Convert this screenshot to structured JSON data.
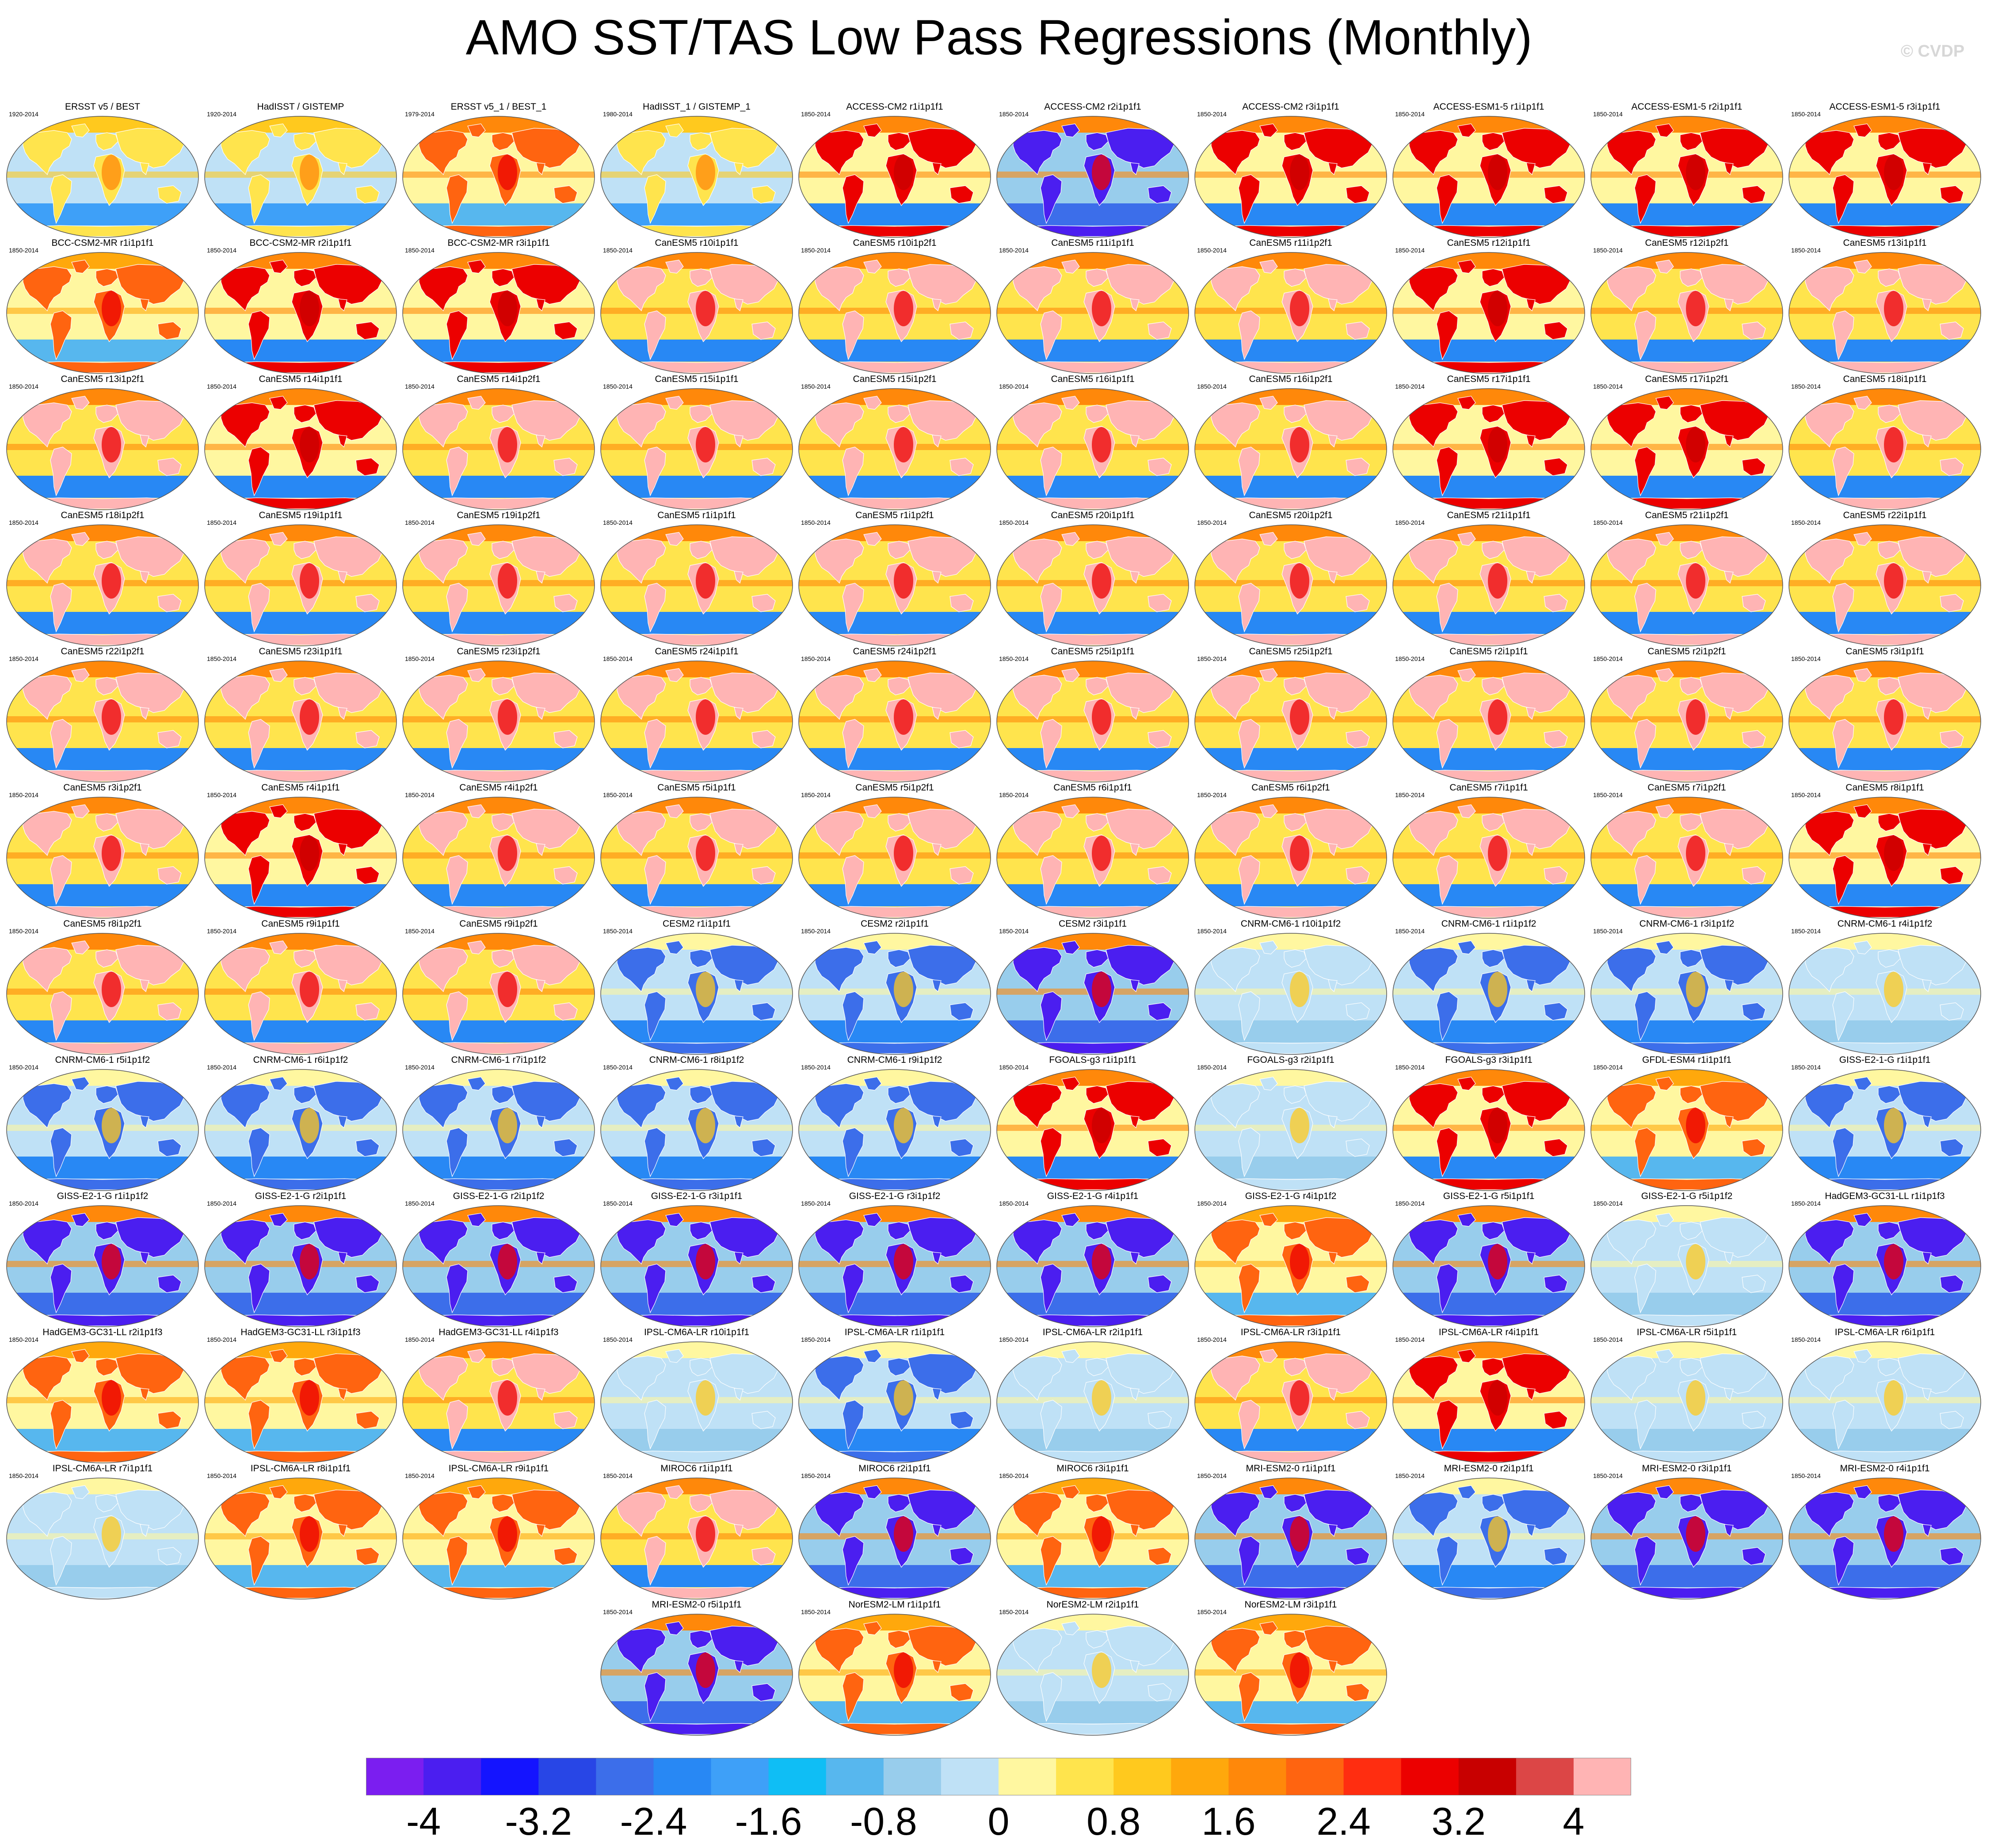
{
  "title": "AMO SST/TAS Low Pass Regressions (Monthly)",
  "watermark": "© CVDP",
  "panels": [
    {
      "title": "ERSST v5 / BEST",
      "years": "1920-2014",
      "pattern": "obs"
    },
    {
      "title": "HadISST / GISTEMP",
      "years": "1920-2014",
      "pattern": "obs"
    },
    {
      "title": "ERSST v5_1 / BEST_1",
      "years": "1979-2014",
      "pattern": "obs-warm"
    },
    {
      "title": "HadISST_1 / GISTEMP_1",
      "years": "1980-2014",
      "pattern": "obs"
    },
    {
      "title": "ACCESS-CM2 r1i1p1f1",
      "years": "1850-2014",
      "pattern": "hot"
    },
    {
      "title": "ACCESS-CM2 r2i1p1f1",
      "years": "1850-2014",
      "pattern": "cold"
    },
    {
      "title": "ACCESS-CM2 r3i1p1f1",
      "years": "1850-2014",
      "pattern": "hot"
    },
    {
      "title": "ACCESS-ESM1-5 r1i1p1f1",
      "years": "1850-2014",
      "pattern": "hot"
    },
    {
      "title": "ACCESS-ESM1-5 r2i1p1f1",
      "years": "1850-2014",
      "pattern": "hot"
    },
    {
      "title": "ACCESS-ESM1-5 r3i1p1f1",
      "years": "1850-2014",
      "pattern": "hot"
    },
    {
      "title": "BCC-CSM2-MR r1i1p1f1",
      "years": "1850-2014",
      "pattern": "warm"
    },
    {
      "title": "BCC-CSM2-MR r2i1p1f1",
      "years": "1850-2014",
      "pattern": "hot"
    },
    {
      "title": "BCC-CSM2-MR r3i1p1f1",
      "years": "1850-2014",
      "pattern": "hot"
    },
    {
      "title": "CanESM5 r10i1p1f1",
      "years": "1850-2014",
      "pattern": "pink"
    },
    {
      "title": "CanESM5 r10i1p2f1",
      "years": "1850-2014",
      "pattern": "pink"
    },
    {
      "title": "CanESM5 r11i1p1f1",
      "years": "1850-2014",
      "pattern": "pink"
    },
    {
      "title": "CanESM5 r11i1p2f1",
      "years": "1850-2014",
      "pattern": "pink"
    },
    {
      "title": "CanESM5 r12i1p1f1",
      "years": "1850-2014",
      "pattern": "hot"
    },
    {
      "title": "CanESM5 r12i1p2f1",
      "years": "1850-2014",
      "pattern": "pink"
    },
    {
      "title": "CanESM5 r13i1p1f1",
      "years": "1850-2014",
      "pattern": "pink"
    },
    {
      "title": "CanESM5 r13i1p2f1",
      "years": "1850-2014",
      "pattern": "pink"
    },
    {
      "title": "CanESM5 r14i1p1f1",
      "years": "1850-2014",
      "pattern": "hot"
    },
    {
      "title": "CanESM5 r14i1p2f1",
      "years": "1850-2014",
      "pattern": "pink"
    },
    {
      "title": "CanESM5 r15i1p1f1",
      "years": "1850-2014",
      "pattern": "pink"
    },
    {
      "title": "CanESM5 r15i1p2f1",
      "years": "1850-2014",
      "pattern": "pink"
    },
    {
      "title": "CanESM5 r16i1p1f1",
      "years": "1850-2014",
      "pattern": "pink"
    },
    {
      "title": "CanESM5 r16i1p2f1",
      "years": "1850-2014",
      "pattern": "pink"
    },
    {
      "title": "CanESM5 r17i1p1f1",
      "years": "1850-2014",
      "pattern": "hot"
    },
    {
      "title": "CanESM5 r17i1p2f1",
      "years": "1850-2014",
      "pattern": "hot"
    },
    {
      "title": "CanESM5 r18i1p1f1",
      "years": "1850-2014",
      "pattern": "pink"
    },
    {
      "title": "CanESM5 r18i1p2f1",
      "years": "1850-2014",
      "pattern": "pink"
    },
    {
      "title": "CanESM5 r19i1p1f1",
      "years": "1850-2014",
      "pattern": "pink"
    },
    {
      "title": "CanESM5 r19i1p2f1",
      "years": "1850-2014",
      "pattern": "pink"
    },
    {
      "title": "CanESM5 r1i1p1f1",
      "years": "1850-2014",
      "pattern": "pink"
    },
    {
      "title": "CanESM5 r1i1p2f1",
      "years": "1850-2014",
      "pattern": "pink"
    },
    {
      "title": "CanESM5 r20i1p1f1",
      "years": "1850-2014",
      "pattern": "pink"
    },
    {
      "title": "CanESM5 r20i1p2f1",
      "years": "1850-2014",
      "pattern": "pink"
    },
    {
      "title": "CanESM5 r21i1p1f1",
      "years": "1850-2014",
      "pattern": "pink"
    },
    {
      "title": "CanESM5 r21i1p2f1",
      "years": "1850-2014",
      "pattern": "pink"
    },
    {
      "title": "CanESM5 r22i1p1f1",
      "years": "1850-2014",
      "pattern": "pink"
    },
    {
      "title": "CanESM5 r22i1p2f1",
      "years": "1850-2014",
      "pattern": "pink"
    },
    {
      "title": "CanESM5 r23i1p1f1",
      "years": "1850-2014",
      "pattern": "pink"
    },
    {
      "title": "CanESM5 r23i1p2f1",
      "years": "1850-2014",
      "pattern": "pink"
    },
    {
      "title": "CanESM5 r24i1p1f1",
      "years": "1850-2014",
      "pattern": "pink"
    },
    {
      "title": "CanESM5 r24i1p2f1",
      "years": "1850-2014",
      "pattern": "pink"
    },
    {
      "title": "CanESM5 r25i1p1f1",
      "years": "1850-2014",
      "pattern": "pink"
    },
    {
      "title": "CanESM5 r25i1p2f1",
      "years": "1850-2014",
      "pattern": "pink"
    },
    {
      "title": "CanESM5 r2i1p1f1",
      "years": "1850-2014",
      "pattern": "pink"
    },
    {
      "title": "CanESM5 r2i1p2f1",
      "years": "1850-2014",
      "pattern": "pink"
    },
    {
      "title": "CanESM5 r3i1p1f1",
      "years": "1850-2014",
      "pattern": "pink"
    },
    {
      "title": "CanESM5 r3i1p2f1",
      "years": "1850-2014",
      "pattern": "pink"
    },
    {
      "title": "CanESM5 r4i1p1f1",
      "years": "1850-2014",
      "pattern": "hot"
    },
    {
      "title": "CanESM5 r4i1p2f1",
      "years": "1850-2014",
      "pattern": "pink"
    },
    {
      "title": "CanESM5 r5i1p1f1",
      "years": "1850-2014",
      "pattern": "pink"
    },
    {
      "title": "CanESM5 r5i1p2f1",
      "years": "1850-2014",
      "pattern": "pink"
    },
    {
      "title": "CanESM5 r6i1p1f1",
      "years": "1850-2014",
      "pattern": "pink"
    },
    {
      "title": "CanESM5 r6i1p2f1",
      "years": "1850-2014",
      "pattern": "pink"
    },
    {
      "title": "CanESM5 r7i1p1f1",
      "years": "1850-2014",
      "pattern": "pink"
    },
    {
      "title": "CanESM5 r7i1p2f1",
      "years": "1850-2014",
      "pattern": "pink"
    },
    {
      "title": "CanESM5 r8i1p1f1",
      "years": "1850-2014",
      "pattern": "hot"
    },
    {
      "title": "CanESM5 r8i1p2f1",
      "years": "1850-2014",
      "pattern": "pink"
    },
    {
      "title": "CanESM5 r9i1p1f1",
      "years": "1850-2014",
      "pattern": "pink"
    },
    {
      "title": "CanESM5 r9i1p2f1",
      "years": "1850-2014",
      "pattern": "pink"
    },
    {
      "title": "CESM2 r1i1p1f1",
      "years": "1850-2014",
      "pattern": "blue"
    },
    {
      "title": "CESM2 r2i1p1f1",
      "years": "1850-2014",
      "pattern": "blue"
    },
    {
      "title": "CESM2 r3i1p1f1",
      "years": "1850-2014",
      "pattern": "cold"
    },
    {
      "title": "CNRM-CM6-1 r10i1p1f2",
      "years": "1850-2014",
      "pattern": "pale"
    },
    {
      "title": "CNRM-CM6-1 r1i1p1f2",
      "years": "1850-2014",
      "pattern": "blue"
    },
    {
      "title": "CNRM-CM6-1 r3i1p1f2",
      "years": "1850-2014",
      "pattern": "blue"
    },
    {
      "title": "CNRM-CM6-1 r4i1p1f2",
      "years": "1850-2014",
      "pattern": "pale"
    },
    {
      "title": "CNRM-CM6-1 r5i1p1f2",
      "years": "1850-2014",
      "pattern": "blue"
    },
    {
      "title": "CNRM-CM6-1 r6i1p1f2",
      "years": "1850-2014",
      "pattern": "blue"
    },
    {
      "title": "CNRM-CM6-1 r7i1p1f2",
      "years": "1850-2014",
      "pattern": "blue"
    },
    {
      "title": "CNRM-CM6-1 r8i1p1f2",
      "years": "1850-2014",
      "pattern": "blue"
    },
    {
      "title": "CNRM-CM6-1 r9i1p1f2",
      "years": "1850-2014",
      "pattern": "blue"
    },
    {
      "title": "FGOALS-g3 r1i1p1f1",
      "years": "1850-2014",
      "pattern": "hot"
    },
    {
      "title": "FGOALS-g3 r2i1p1f1",
      "years": "1850-2014",
      "pattern": "pale"
    },
    {
      "title": "FGOALS-g3 r3i1p1f1",
      "years": "1850-2014",
      "pattern": "hot"
    },
    {
      "title": "GFDL-ESM4 r1i1p1f1",
      "years": "1850-2014",
      "pattern": "warm"
    },
    {
      "title": "GISS-E2-1-G r1i1p1f1",
      "years": "1850-2014",
      "pattern": "blue"
    },
    {
      "title": "GISS-E2-1-G r1i1p1f2",
      "years": "1850-2014",
      "pattern": "cold"
    },
    {
      "title": "GISS-E2-1-G r2i1p1f1",
      "years": "1850-2014",
      "pattern": "cold"
    },
    {
      "title": "GISS-E2-1-G r2i1p1f2",
      "years": "1850-2014",
      "pattern": "cold"
    },
    {
      "title": "GISS-E2-1-G r3i1p1f1",
      "years": "1850-2014",
      "pattern": "cold"
    },
    {
      "title": "GISS-E2-1-G r3i1p1f2",
      "years": "1850-2014",
      "pattern": "cold"
    },
    {
      "title": "GISS-E2-1-G r4i1p1f1",
      "years": "1850-2014",
      "pattern": "cold"
    },
    {
      "title": "GISS-E2-1-G r4i1p1f2",
      "years": "1850-2014",
      "pattern": "warm"
    },
    {
      "title": "GISS-E2-1-G r5i1p1f1",
      "years": "1850-2014",
      "pattern": "cold"
    },
    {
      "title": "GISS-E2-1-G r5i1p1f2",
      "years": "1850-2014",
      "pattern": "pale"
    },
    {
      "title": "HadGEM3-GC31-LL r1i1p1f3",
      "years": "1850-2014",
      "pattern": "cold"
    },
    {
      "title": "HadGEM3-GC31-LL r2i1p1f3",
      "years": "1850-2014",
      "pattern": "warm"
    },
    {
      "title": "HadGEM3-GC31-LL r3i1p1f3",
      "years": "1850-2014",
      "pattern": "warm"
    },
    {
      "title": "HadGEM3-GC31-LL r4i1p1f3",
      "years": "1850-2014",
      "pattern": "pink"
    },
    {
      "title": "IPSL-CM6A-LR r10i1p1f1",
      "years": "1850-2014",
      "pattern": "pale"
    },
    {
      "title": "IPSL-CM6A-LR r1i1p1f1",
      "years": "1850-2014",
      "pattern": "blue"
    },
    {
      "title": "IPSL-CM6A-LR r2i1p1f1",
      "years": "1850-2014",
      "pattern": "pale"
    },
    {
      "title": "IPSL-CM6A-LR r3i1p1f1",
      "years": "1850-2014",
      "pattern": "pink"
    },
    {
      "title": "IPSL-CM6A-LR r4i1p1f1",
      "years": "1850-2014",
      "pattern": "hot"
    },
    {
      "title": "IPSL-CM6A-LR r5i1p1f1",
      "years": "1850-2014",
      "pattern": "pale"
    },
    {
      "title": "IPSL-CM6A-LR r6i1p1f1",
      "years": "1850-2014",
      "pattern": "pale"
    },
    {
      "title": "IPSL-CM6A-LR r7i1p1f1",
      "years": "1850-2014",
      "pattern": "pale"
    },
    {
      "title": "IPSL-CM6A-LR r8i1p1f1",
      "years": "1850-2014",
      "pattern": "warm"
    },
    {
      "title": "IPSL-CM6A-LR r9i1p1f1",
      "years": "1850-2014",
      "pattern": "warm"
    },
    {
      "title": "MIROC6 r1i1p1f1",
      "years": "1850-2014",
      "pattern": "pink"
    },
    {
      "title": "MIROC6 r2i1p1f1",
      "years": "1850-2014",
      "pattern": "cold"
    },
    {
      "title": "MIROC6 r3i1p1f1",
      "years": "1850-2014",
      "pattern": "warm"
    },
    {
      "title": "MRI-ESM2-0 r1i1p1f1",
      "years": "1850-2014",
      "pattern": "cold"
    },
    {
      "title": "MRI-ESM2-0 r2i1p1f1",
      "years": "1850-2014",
      "pattern": "blue"
    },
    {
      "title": "MRI-ESM2-0 r3i1p1f1",
      "years": "1850-2014",
      "pattern": "cold"
    },
    {
      "title": "MRI-ESM2-0 r4i1p1f1",
      "years": "1850-2014",
      "pattern": "cold"
    },
    {
      "title": "MRI-ESM2-0 r5i1p1f1",
      "years": "1850-2014",
      "pattern": "cold"
    },
    {
      "title": "NorESM2-LM r1i1p1f1",
      "years": "1850-2014",
      "pattern": "warm"
    },
    {
      "title": "NorESM2-LM r2i1p1f1",
      "years": "1850-2014",
      "pattern": "pale"
    },
    {
      "title": "NorESM2-LM r3i1p1f1",
      "years": "1850-2014",
      "pattern": "warm"
    }
  ],
  "colorbar": {
    "colors": [
      "#7b1ef0",
      "#4b1ef0",
      "#1414ff",
      "#2846e6",
      "#3c6eea",
      "#2888f4",
      "#3ea0f8",
      "#0fbef5",
      "#57b7ee",
      "#98cdec",
      "#bfe1f6",
      "#fff7a0",
      "#ffe44d",
      "#ffc91e",
      "#ffa80c",
      "#ff880a",
      "#ff6410",
      "#ff2d10",
      "#ec0000",
      "#c80000",
      "#dc4646",
      "#ffb4b4"
    ],
    "min": -4.4,
    "step": 0.4,
    "labels": [
      "-4",
      "-3.2",
      "-2.4",
      "-1.6",
      "-0.8",
      "0",
      "0.8",
      "1.6",
      "2.4",
      "3.2",
      "4"
    ],
    "label_values": [
      -4,
      -3.2,
      -2.4,
      -1.6,
      -0.8,
      0,
      0.8,
      1.6,
      2.4,
      3.2,
      4
    ]
  }
}
